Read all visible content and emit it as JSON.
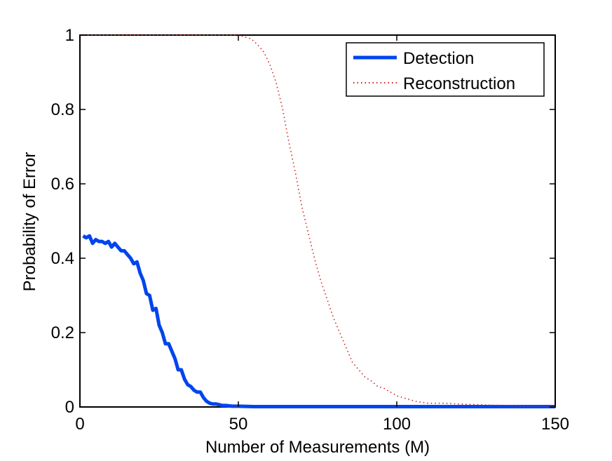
{
  "chart_data": {
    "type": "line",
    "title": "",
    "xlabel": "Number of Measurements (M)",
    "ylabel": "Probability of Error",
    "xlim": [
      0,
      150
    ],
    "ylim": [
      0,
      1
    ],
    "xticks": [
      0,
      50,
      100,
      150
    ],
    "xtick_labels": [
      "0",
      "50",
      "100",
      "150"
    ],
    "yticks": [
      0,
      0.2,
      0.4,
      0.6,
      0.8,
      1
    ],
    "ytick_labels": [
      "0",
      "0.2",
      "0.4",
      "0.6",
      "0.8",
      "1"
    ],
    "grid": false,
    "legend_position": "top-right",
    "series": [
      {
        "name": "Detection",
        "color": "#0044ee",
        "style": "solid",
        "x": [
          1,
          2,
          3,
          4,
          5,
          6,
          7,
          8,
          9,
          10,
          11,
          12,
          13,
          14,
          15,
          16,
          17,
          18,
          19,
          20,
          21,
          22,
          23,
          24,
          25,
          26,
          27,
          28,
          29,
          30,
          31,
          32,
          33,
          34,
          35,
          36,
          37,
          38,
          39,
          40,
          41,
          42,
          43,
          44,
          45,
          46,
          47,
          48,
          49,
          50,
          55,
          60,
          70,
          80,
          90,
          100,
          110,
          120,
          130,
          140,
          150
        ],
        "y": [
          0.46,
          0.455,
          0.46,
          0.44,
          0.45,
          0.445,
          0.445,
          0.44,
          0.445,
          0.43,
          0.44,
          0.43,
          0.42,
          0.42,
          0.41,
          0.4,
          0.385,
          0.39,
          0.36,
          0.34,
          0.305,
          0.3,
          0.26,
          0.265,
          0.22,
          0.2,
          0.17,
          0.17,
          0.15,
          0.13,
          0.1,
          0.1,
          0.075,
          0.06,
          0.055,
          0.045,
          0.04,
          0.04,
          0.025,
          0.015,
          0.01,
          0.008,
          0.008,
          0.006,
          0.004,
          0.004,
          0.003,
          0.002,
          0.002,
          0.002,
          0.001,
          0.001,
          0.001,
          0.001,
          0.001,
          0.001,
          0.001,
          0.001,
          0.001,
          0.001,
          0.001
        ]
      },
      {
        "name": "Reconstruction",
        "color": "#cc2222",
        "style": "dotted",
        "x": [
          0,
          10,
          20,
          30,
          40,
          48,
          50,
          52,
          54,
          56,
          58,
          60,
          62,
          64,
          66,
          68,
          70,
          72,
          74,
          76,
          78,
          80,
          82,
          84,
          86,
          88,
          90,
          92,
          94,
          96,
          98,
          100,
          102,
          104,
          106,
          108,
          110,
          115,
          120,
          130,
          140,
          150
        ],
        "y": [
          1,
          1,
          1,
          1,
          1,
          1,
          1,
          0.995,
          0.99,
          0.975,
          0.955,
          0.92,
          0.87,
          0.8,
          0.71,
          0.63,
          0.54,
          0.47,
          0.4,
          0.34,
          0.29,
          0.24,
          0.2,
          0.16,
          0.12,
          0.1,
          0.08,
          0.07,
          0.055,
          0.05,
          0.04,
          0.03,
          0.025,
          0.02,
          0.015,
          0.012,
          0.01,
          0.01,
          0.008,
          0.005,
          0.003,
          0.002
        ]
      }
    ]
  }
}
